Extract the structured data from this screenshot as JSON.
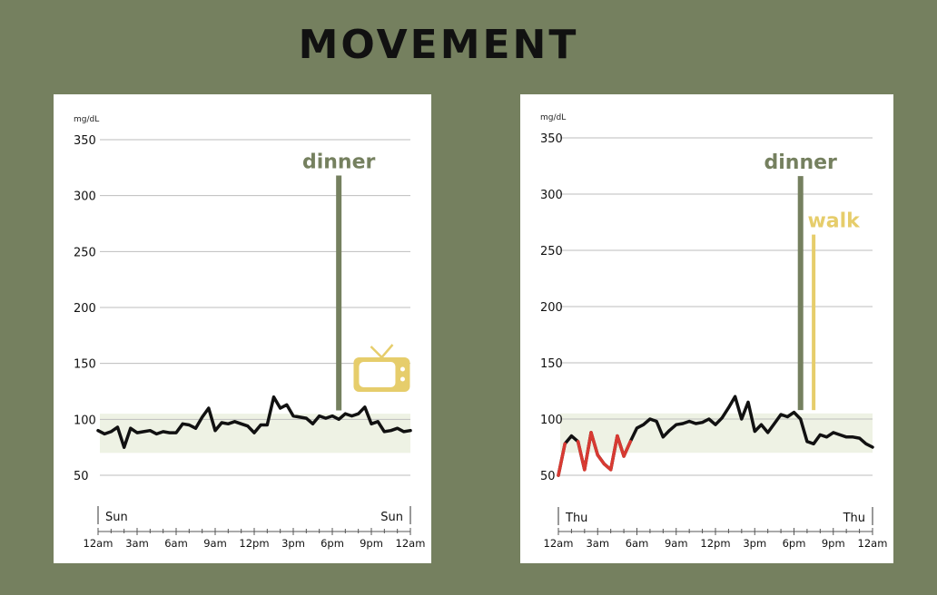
{
  "page": {
    "title": "MOVEMENT"
  },
  "colors": {
    "background": "#75805f",
    "target_band": "#eef2e4",
    "line": "#111111",
    "low": "#d83a32",
    "dinner": "#75805f",
    "walk": "#e6cd6b",
    "tv": "#e6cd6b",
    "grid": "#bdbdbd"
  },
  "chart_data": [
    {
      "type": "line",
      "unit_label": "mg/dL",
      "yticks": [
        50,
        100,
        150,
        200,
        250,
        300,
        350
      ],
      "ylim": [
        40,
        355
      ],
      "xlim": [
        0,
        24
      ],
      "xticks": [
        "12am",
        "3am",
        "6am",
        "9am",
        "12pm",
        "3pm",
        "6pm",
        "9pm",
        "12am"
      ],
      "day_start": "Sun",
      "day_end": "Sun",
      "target_range": [
        70,
        105
      ],
      "low_threshold": 70,
      "x": [
        0,
        0.5,
        1,
        1.5,
        2,
        2.5,
        3,
        3.5,
        4,
        4.5,
        5,
        5.5,
        6,
        6.5,
        7,
        7.5,
        8,
        8.5,
        9,
        9.5,
        10,
        10.5,
        11,
        11.5,
        12,
        12.5,
        13,
        13.5,
        14,
        14.5,
        15,
        15.5,
        16,
        16.5,
        17,
        17.5,
        18,
        18.5,
        19,
        19.5,
        20,
        20.5,
        21,
        21.5,
        22,
        22.5,
        23,
        23.5,
        24
      ],
      "y": [
        90,
        87,
        89,
        93,
        75,
        92,
        88,
        89,
        90,
        87,
        89,
        88,
        88,
        96,
        95,
        92,
        102,
        110,
        90,
        97,
        96,
        98,
        96,
        94,
        88,
        95,
        95,
        120,
        110,
        113,
        103,
        102,
        101,
        96,
        103,
        101,
        103,
        100,
        105,
        103,
        105,
        111,
        96,
        98,
        89,
        90,
        92,
        89,
        90
      ],
      "events": [
        {
          "label": "dinner",
          "time": 18.5,
          "y_bottom": 108,
          "y_top": 318
        }
      ],
      "icons": [
        {
          "name": "tv-icon",
          "time": 21.8,
          "y": 140
        }
      ]
    },
    {
      "type": "line",
      "unit_label": "mg/dL",
      "yticks": [
        50,
        100,
        150,
        200,
        250,
        300,
        350
      ],
      "ylim": [
        40,
        355
      ],
      "xlim": [
        0,
        24
      ],
      "xticks": [
        "12am",
        "3am",
        "6am",
        "9am",
        "12pm",
        "3pm",
        "6pm",
        "9pm",
        "12am"
      ],
      "day_start": "Thu",
      "day_end": "Thu",
      "target_range": [
        70,
        105
      ],
      "low_threshold": 70,
      "x": [
        0,
        0.5,
        1,
        1.5,
        2,
        2.5,
        3,
        3.5,
        4,
        4.5,
        5,
        5.5,
        6,
        6.5,
        7,
        7.5,
        8,
        8.5,
        9,
        9.5,
        10,
        10.5,
        11,
        11.5,
        12,
        12.5,
        13,
        13.5,
        14,
        14.5,
        15,
        15.5,
        16,
        16.5,
        17,
        17.5,
        18,
        18.5,
        19,
        19.5,
        20,
        20.5,
        21,
        21.5,
        22,
        22.5,
        23,
        23.5,
        24
      ],
      "y": [
        50,
        78,
        85,
        80,
        55,
        88,
        68,
        60,
        55,
        85,
        67,
        80,
        92,
        95,
        100,
        98,
        84,
        90,
        95,
        96,
        98,
        96,
        97,
        100,
        95,
        101,
        110,
        120,
        100,
        115,
        89,
        95,
        88,
        96,
        104,
        102,
        106,
        100,
        80,
        78,
        86,
        84,
        88,
        86,
        84,
        84,
        83,
        78,
        75
      ],
      "events": [
        {
          "label": "dinner",
          "time": 18.5,
          "y_bottom": 108,
          "y_top": 316
        },
        {
          "label": "walk",
          "time": 19.5,
          "y_bottom": 108,
          "y_top": 264
        }
      ],
      "icons": []
    }
  ]
}
